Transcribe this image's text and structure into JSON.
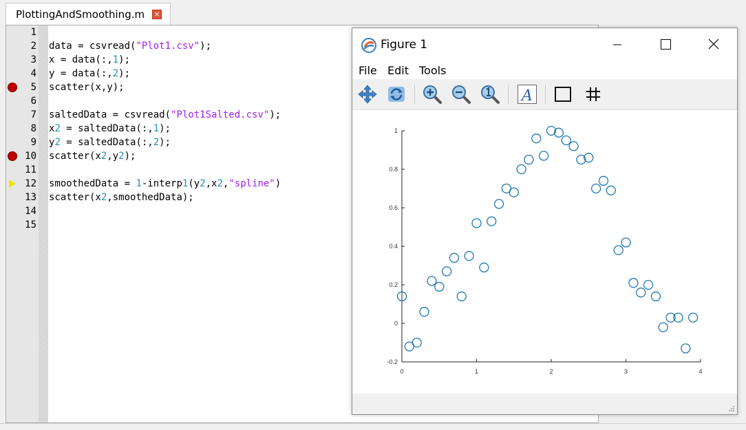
{
  "editor": {
    "tab_label": "PlottingAndSmoothing.m",
    "tab_close_glyph": "×",
    "lines": [
      {
        "n": "1",
        "text": ""
      },
      {
        "n": "2",
        "text": "data = csvread(\"Plot1.csv\");"
      },
      {
        "n": "3",
        "text": "x = data(:,1);"
      },
      {
        "n": "4",
        "text": "y = data(:,2);"
      },
      {
        "n": "5",
        "text": "scatter(x,y);"
      },
      {
        "n": "6",
        "text": ""
      },
      {
        "n": "7",
        "text": "saltedData = csvread(\"Plot1Salted.csv\");"
      },
      {
        "n": "8",
        "text": "x2 = saltedData(:,1);"
      },
      {
        "n": "9",
        "text": "y2 = saltedData(:,2);"
      },
      {
        "n": "10",
        "text": "scatter(x2,y2);"
      },
      {
        "n": "11",
        "text": ""
      },
      {
        "n": "12",
        "text": "smoothedData = 1-interp1(y2,x2,\"spline\")"
      },
      {
        "n": "13",
        "text": "scatter(x2,smoothedData);"
      },
      {
        "n": "14",
        "text": ""
      },
      {
        "n": "15",
        "text": ""
      }
    ],
    "breakpoint_lines": [
      "5",
      "10"
    ],
    "current_line": "12"
  },
  "figure": {
    "title": "Figure 1",
    "menu": [
      "File",
      "Edit",
      "Tools"
    ],
    "toolbar": [
      "pan-icon",
      "rotate-icon",
      "zoom-in-icon",
      "zoom-out-icon",
      "zoom-reset-icon",
      "insert-text-icon",
      "axes-box-icon",
      "grid-icon"
    ]
  },
  "chart_data": {
    "type": "scatter",
    "marker": "open-circle",
    "color": "#1f77b4",
    "xlim": [
      0,
      4
    ],
    "ylim": [
      -0.2,
      1
    ],
    "xticks": [
      "0",
      "1",
      "2",
      "3",
      "4"
    ],
    "yticks": [
      "-0.2",
      "0",
      "0.2",
      "0.4",
      "0.6",
      "0.8",
      "1"
    ],
    "grid": false,
    "points": [
      [
        0.0,
        0.14
      ],
      [
        0.1,
        -0.12
      ],
      [
        0.2,
        -0.1
      ],
      [
        0.3,
        0.06
      ],
      [
        0.4,
        0.22
      ],
      [
        0.5,
        0.19
      ],
      [
        0.6,
        0.27
      ],
      [
        0.7,
        0.34
      ],
      [
        0.8,
        0.14
      ],
      [
        0.9,
        0.35
      ],
      [
        1.0,
        0.52
      ],
      [
        1.1,
        0.29
      ],
      [
        1.2,
        0.53
      ],
      [
        1.3,
        0.62
      ],
      [
        1.4,
        0.7
      ],
      [
        1.5,
        0.68
      ],
      [
        1.6,
        0.8
      ],
      [
        1.7,
        0.85
      ],
      [
        1.8,
        0.96
      ],
      [
        1.9,
        0.87
      ],
      [
        2.0,
        1.0
      ],
      [
        2.1,
        0.99
      ],
      [
        2.2,
        0.95
      ],
      [
        2.3,
        0.92
      ],
      [
        2.4,
        0.85
      ],
      [
        2.5,
        0.86
      ],
      [
        2.6,
        0.7
      ],
      [
        2.7,
        0.74
      ],
      [
        2.8,
        0.69
      ],
      [
        2.9,
        0.38
      ],
      [
        3.0,
        0.42
      ],
      [
        3.1,
        0.21
      ],
      [
        3.2,
        0.16
      ],
      [
        3.3,
        0.2
      ],
      [
        3.4,
        0.14
      ],
      [
        3.5,
        -0.02
      ],
      [
        3.6,
        0.03
      ],
      [
        3.7,
        0.03
      ],
      [
        3.8,
        -0.13
      ],
      [
        3.9,
        0.03
      ]
    ]
  }
}
